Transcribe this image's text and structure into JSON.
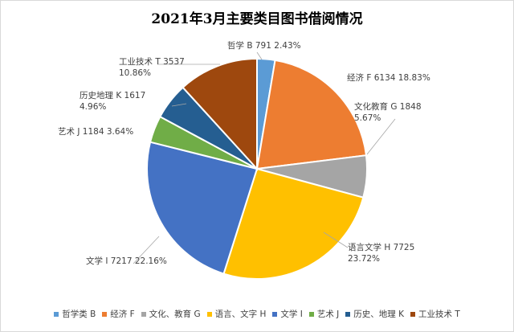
{
  "chart_data": {
    "type": "pie",
    "title": "2021年3月主要类目图书借阅情况",
    "slices": [
      {
        "label": "哲学 B 791 2.43%",
        "legend": "哲学类 B",
        "value": 791,
        "percent": 2.43,
        "color": "#5B9BD5"
      },
      {
        "label": "经济 F 6134  18.83%",
        "legend": "经济 F",
        "value": 6134,
        "percent": 18.83,
        "color": "#ED7D31"
      },
      {
        "label": "文化教育 G 1848\n5.67%",
        "legend": "文化、教育 G",
        "value": 1848,
        "percent": 5.67,
        "color": "#A5A5A5"
      },
      {
        "label": "语言文学 H 7725\n23.72%",
        "legend": "语言、文字 H",
        "value": 7725,
        "percent": 23.72,
        "color": "#FFC000"
      },
      {
        "label": "文学 I 7217 22.16%",
        "legend": "文学 I",
        "value": 7217,
        "percent": 22.16,
        "color": "#4472C4"
      },
      {
        "label": "艺术 J 1184 3.64%",
        "legend": "艺术 J",
        "value": 1184,
        "percent": 3.64,
        "color": "#70AD47"
      },
      {
        "label": "历史地理 K 1617\n4.96%",
        "legend": "历史、地理 K",
        "value": 1617,
        "percent": 4.96,
        "color": "#255E91"
      },
      {
        "label": "工业技术 T 3537\n10.86%",
        "legend": "工业技术 T",
        "value": 3537,
        "percent": 10.86,
        "color": "#9E480E"
      }
    ],
    "legend_position": "bottom"
  }
}
